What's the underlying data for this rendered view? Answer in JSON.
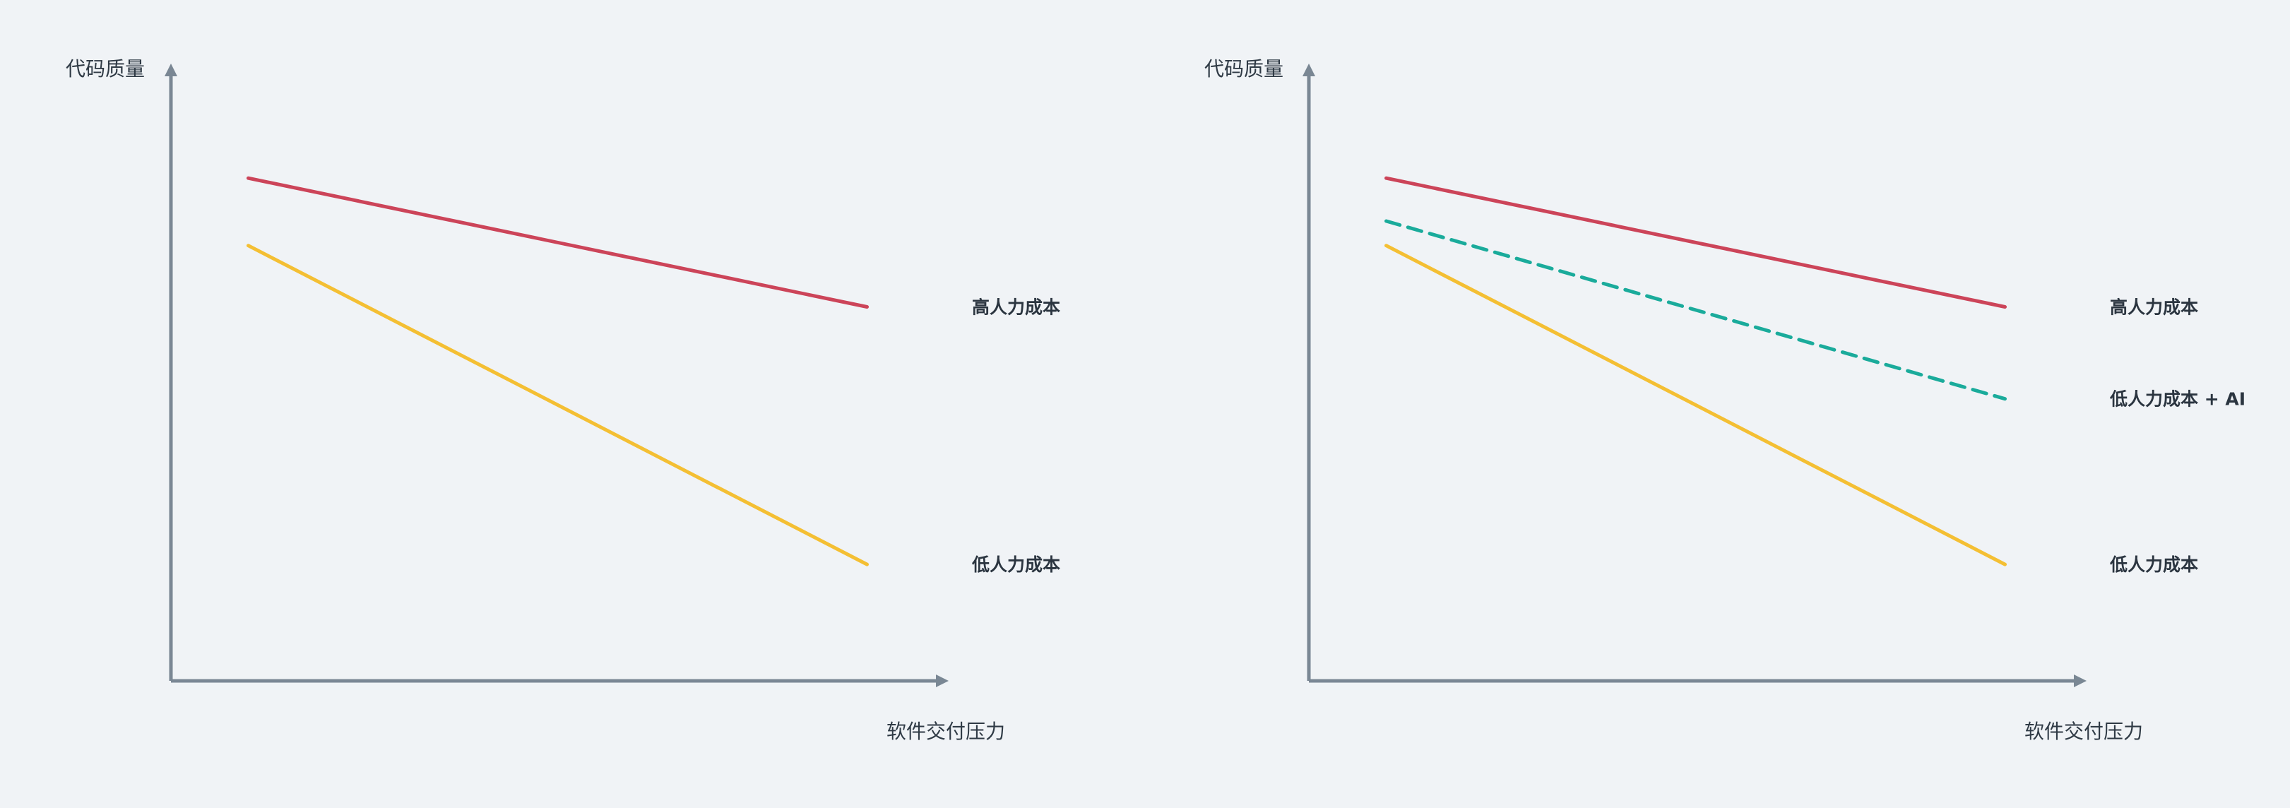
{
  "chart_data": [
    {
      "type": "line",
      "title": "",
      "xlabel": "软件交付压力",
      "ylabel": "代码质量",
      "xlim": [
        0,
        10
      ],
      "ylim": [
        0,
        10
      ],
      "grid": false,
      "legend": "right",
      "series": [
        {
          "name": "高人力成本",
          "x": [
            1,
            9
          ],
          "y": [
            8.2,
            6.1
          ],
          "color": "#cc4459",
          "dash": false
        },
        {
          "name": "低人力成本",
          "x": [
            1,
            9
          ],
          "y": [
            7.1,
            1.9
          ],
          "color": "#f4bf33",
          "dash": false
        }
      ]
    },
    {
      "type": "line",
      "title": "",
      "xlabel": "软件交付压力",
      "ylabel": "代码质量",
      "xlim": [
        0,
        10
      ],
      "ylim": [
        0,
        10
      ],
      "grid": false,
      "legend": "right",
      "series": [
        {
          "name": "高人力成本",
          "x": [
            1,
            9
          ],
          "y": [
            8.2,
            6.1
          ],
          "color": "#cc4459",
          "dash": false
        },
        {
          "name": "低人力成本 + AI",
          "x": [
            1,
            9
          ],
          "y": [
            7.5,
            4.6
          ],
          "color": "#1aab9b",
          "dash": true
        },
        {
          "name": "低人力成本",
          "x": [
            1,
            9
          ],
          "y": [
            7.1,
            1.9
          ],
          "color": "#f4bf33",
          "dash": false
        }
      ]
    }
  ]
}
